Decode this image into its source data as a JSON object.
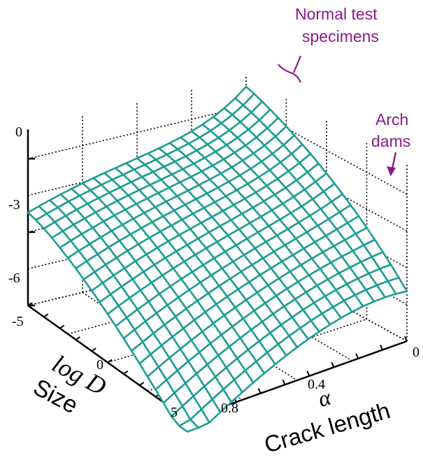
{
  "chart_data": {
    "type": "surface",
    "title": "",
    "axes": {
      "z": {
        "ticks": [
          "0",
          "-3",
          "-6"
        ],
        "range": [
          -6,
          0
        ]
      },
      "size": {
        "label_symbol": "log D",
        "label_text": "Size",
        "ticks": [
          "-5",
          "0",
          "5"
        ],
        "range": [
          -5,
          5
        ]
      },
      "crack": {
        "label_symbol": "α",
        "label_text": "Crack length",
        "ticks": [
          "0",
          "0.4",
          "0.8"
        ],
        "range": [
          0,
          0.9
        ]
      }
    },
    "grid": true,
    "surface_color": "#1f9d94",
    "annotations": [
      {
        "line1": "Normal test",
        "line2": "specimens"
      },
      {
        "line1": "Arch",
        "line2": "dams"
      }
    ],
    "annotation_color": "#8a1a8a"
  }
}
